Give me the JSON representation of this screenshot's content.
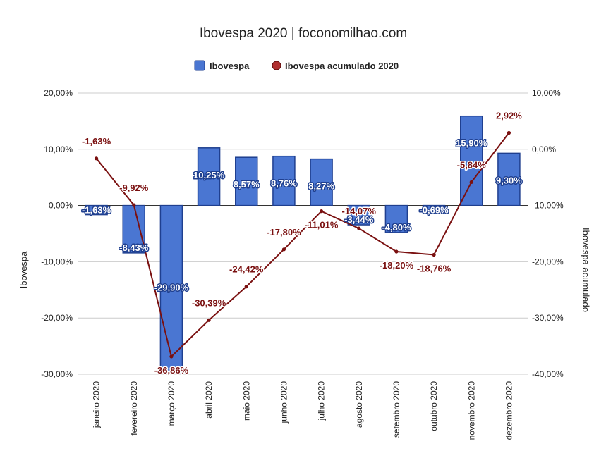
{
  "chart_data": {
    "type": "bar",
    "title": "Ibovespa 2020 | foconomilhao.com",
    "categories": [
      "janeiro 2020",
      "fevereiro 2020",
      "março 2020",
      "abril 2020",
      "maio 2020",
      "junho 2020",
      "julho 2020",
      "agosto 2020",
      "setembro 2020",
      "outubro 2020",
      "novembro 2020",
      "dezembro 2020"
    ],
    "series": [
      {
        "name": "Ibovespa",
        "kind": "bar",
        "axis": "left",
        "color": "#4a76d2",
        "values": [
          -1.63,
          -8.43,
          -29.9,
          10.25,
          8.57,
          8.76,
          8.27,
          -3.44,
          -4.8,
          -0.69,
          15.9,
          9.3
        ],
        "labels": [
          "-1,63%",
          "-8,43%",
          "-29,90%",
          "10,25%",
          "8,57%",
          "8,76%",
          "8,27%",
          "-3,44%",
          "-4,80%",
          "-0,69%",
          "15,90%",
          "9,30%"
        ]
      },
      {
        "name": "Ibovespa acumulado 2020",
        "kind": "line",
        "axis": "right",
        "color": "#7a1010",
        "values": [
          -1.63,
          -9.92,
          -36.86,
          -30.39,
          -24.42,
          -17.8,
          -11.01,
          -14.07,
          -18.2,
          -18.76,
          -5.84,
          2.92
        ],
        "labels": [
          "-1,63%",
          "-9,92%",
          "-36,86%",
          "-30,39%",
          "-24,42%",
          "-17,80%",
          "-11,01%",
          "-14,07%",
          "-18,20%",
          "-18,76%",
          "-5,84%",
          "2,92%"
        ]
      }
    ],
    "ylabel": "Ibovespa",
    "y2label": "Ibovespa acumulado",
    "ylim": [
      -30,
      20
    ],
    "y2lim": [
      -40,
      10
    ],
    "yticks": [
      "20,00%",
      "10,00%",
      "0,00%",
      "-10,00%",
      "-20,00%",
      "-30,00%"
    ],
    "y2ticks": [
      "10,00%",
      "0,00%",
      "-10,00%",
      "-20,00%",
      "-30,00%",
      "-40,00%"
    ],
    "legend_position": "top",
    "grid": true
  }
}
